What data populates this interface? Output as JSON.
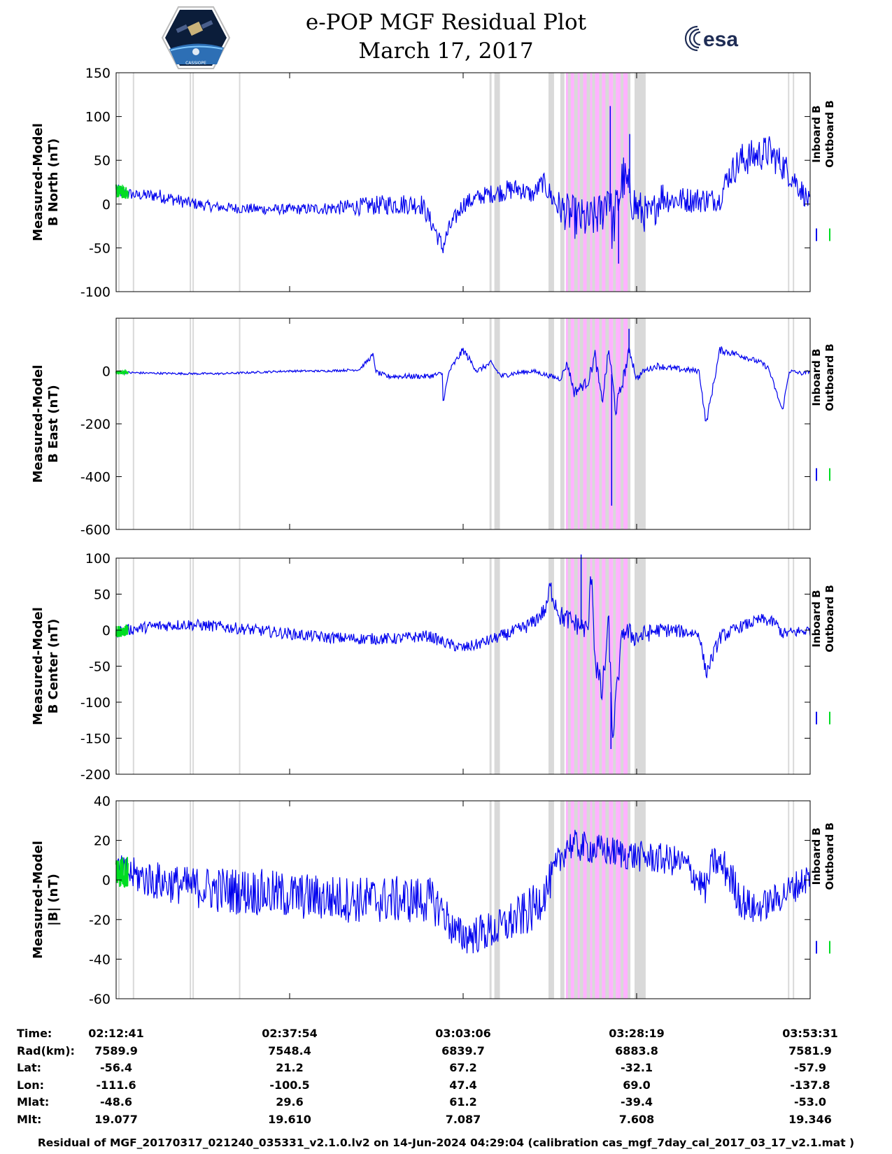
{
  "header": {
    "title": "e-POP MGF Residual Plot",
    "date": "March 17, 2017",
    "left_logo": "CASSIOPE",
    "right_logo": "esa"
  },
  "colors": {
    "inboard": "#0000ee",
    "outboard": "#00dd22",
    "gap_shade": "#d9d9d9",
    "event_shade": "#ffb3ff"
  },
  "legend": {
    "inboard": "Inboard B",
    "outboard": "Outboard B"
  },
  "chart_data": [
    {
      "type": "line",
      "ylabel": [
        "Measured-Model",
        "B North (nT)"
      ],
      "ylim": [
        -100,
        150
      ],
      "yticks": [
        -100,
        -50,
        0,
        50,
        100,
        150
      ],
      "series": [
        {
          "name": "Inboard B",
          "x": [
            0,
            0.03,
            0.06,
            0.1,
            0.14,
            0.18,
            0.22,
            0.26,
            0.3,
            0.35,
            0.4,
            0.44,
            0.46,
            0.47,
            0.48,
            0.5,
            0.53,
            0.56,
            0.58,
            0.6,
            0.615,
            0.63,
            0.64,
            0.66,
            0.68,
            0.7,
            0.71,
            0.715,
            0.73,
            0.75,
            0.77,
            0.785,
            0.8,
            0.85,
            0.87,
            0.88,
            0.9,
            0.92,
            0.94,
            0.96,
            0.98,
            1.0
          ],
          "y": [
            15,
            10,
            10,
            2,
            -3,
            -5,
            -6,
            -6,
            -5,
            -3,
            0,
            0,
            -30,
            -50,
            -28,
            0,
            10,
            15,
            18,
            10,
            25,
            5,
            -5,
            -15,
            -20,
            -10,
            20,
            -30,
            30,
            -5,
            -15,
            10,
            5,
            5,
            5,
            30,
            50,
            55,
            60,
            45,
            25,
            0
          ],
          "amp": [
            8,
            6,
            8,
            7,
            6,
            6,
            6,
            6,
            7,
            10,
            12,
            12,
            10,
            12,
            10,
            10,
            10,
            12,
            12,
            10,
            12,
            15,
            20,
            25,
            25,
            25,
            30,
            30,
            30,
            25,
            20,
            20,
            15,
            15,
            12,
            15,
            20,
            20,
            20,
            18,
            15,
            12
          ],
          "spikes": [
            [
              0.712,
              112
            ],
            [
              0.724,
              -68
            ],
            [
              0.74,
              80
            ]
          ]
        }
      ],
      "outboard_x_end": 0.017
    },
    {
      "type": "line",
      "ylabel": [
        "Measured-Model",
        "B East (nT)"
      ],
      "ylim": [
        -600,
        200
      ],
      "yticks": [
        -600,
        -400,
        -200,
        0
      ],
      "series": [
        {
          "name": "Inboard B",
          "x": [
            0,
            0.05,
            0.1,
            0.15,
            0.2,
            0.25,
            0.3,
            0.35,
            0.37,
            0.375,
            0.39,
            0.45,
            0.47,
            0.47,
            0.48,
            0.5,
            0.52,
            0.54,
            0.555,
            0.57,
            0.6,
            0.64,
            0.65,
            0.66,
            0.68,
            0.69,
            0.7,
            0.71,
            0.72,
            0.74,
            0.75,
            0.76,
            0.78,
            0.8,
            0.84,
            0.85,
            0.87,
            0.9,
            0.93,
            0.94,
            0.96,
            0.97,
            0.99,
            1.0
          ],
          "y": [
            -5,
            -8,
            -10,
            -10,
            -5,
            0,
            0,
            5,
            60,
            -5,
            -20,
            -20,
            -10,
            -130,
            0,
            80,
            0,
            30,
            -20,
            -10,
            0,
            -30,
            30,
            -80,
            -40,
            60,
            -120,
            80,
            -150,
            80,
            -30,
            0,
            20,
            10,
            0,
            -200,
            80,
            60,
            30,
            10,
            -150,
            0,
            -10,
            0
          ],
          "amp": [
            5,
            4,
            4,
            4,
            4,
            4,
            4,
            5,
            10,
            10,
            10,
            10,
            10,
            10,
            10,
            15,
            10,
            10,
            10,
            10,
            8,
            10,
            15,
            20,
            20,
            25,
            25,
            25,
            30,
            25,
            15,
            10,
            12,
            12,
            10,
            15,
            15,
            12,
            10,
            10,
            10,
            8,
            8,
            6
          ],
          "spikes": [
            [
              0.714,
              -510
            ],
            [
              0.739,
              160
            ]
          ]
        }
      ],
      "outboard_x_end": 0.017
    },
    {
      "type": "line",
      "ylabel": [
        "Measured-Model",
        "B Center (nT)"
      ],
      "ylim": [
        -200,
        100
      ],
      "yticks": [
        -200,
        -150,
        -100,
        -50,
        0,
        50,
        100
      ],
      "series": [
        {
          "name": "Inboard B",
          "x": [
            0,
            0.05,
            0.1,
            0.15,
            0.2,
            0.25,
            0.3,
            0.35,
            0.4,
            0.45,
            0.48,
            0.5,
            0.52,
            0.55,
            0.58,
            0.6,
            0.62,
            0.625,
            0.64,
            0.66,
            0.68,
            0.685,
            0.69,
            0.7,
            0.71,
            0.715,
            0.73,
            0.75,
            0.78,
            0.8,
            0.84,
            0.85,
            0.87,
            0.9,
            0.93,
            0.95,
            0.96,
            1.0
          ],
          "y": [
            -2,
            5,
            8,
            5,
            0,
            -5,
            -10,
            -12,
            -12,
            -8,
            -20,
            -25,
            -20,
            -10,
            0,
            10,
            30,
            60,
            20,
            10,
            0,
            90,
            -40,
            -90,
            10,
            -150,
            0,
            -10,
            0,
            0,
            -5,
            -60,
            -10,
            5,
            15,
            10,
            -5,
            0
          ],
          "amp": [
            8,
            8,
            8,
            8,
            8,
            8,
            8,
            8,
            8,
            8,
            8,
            8,
            8,
            8,
            10,
            10,
            12,
            15,
            15,
            15,
            15,
            20,
            20,
            20,
            20,
            20,
            15,
            15,
            10,
            10,
            8,
            10,
            10,
            8,
            8,
            8,
            8,
            8
          ],
          "spikes": [
            [
              0.67,
              105
            ],
            [
              0.713,
              -165
            ]
          ]
        }
      ],
      "outboard_x_end": 0.017
    },
    {
      "type": "line",
      "ylabel": [
        "Measured-Model",
        "|B| (nT)"
      ],
      "ylim": [
        -60,
        40
      ],
      "yticks": [
        -60,
        -40,
        -20,
        0,
        20,
        40
      ],
      "series": [
        {
          "name": "Inboard B",
          "x": [
            0,
            0.05,
            0.1,
            0.15,
            0.2,
            0.25,
            0.3,
            0.35,
            0.4,
            0.45,
            0.47,
            0.49,
            0.51,
            0.55,
            0.6,
            0.62,
            0.65,
            0.7,
            0.75,
            0.8,
            0.82,
            0.85,
            0.86,
            0.88,
            0.9,
            0.92,
            0.95,
            1.0
          ],
          "y": [
            5,
            0,
            -3,
            -5,
            -6,
            -8,
            -9,
            -10,
            -10,
            -10,
            -15,
            -28,
            -28,
            -25,
            -15,
            -5,
            18,
            15,
            12,
            10,
            8,
            -5,
            10,
            5,
            -10,
            -15,
            -10,
            2
          ],
          "amp": [
            8,
            10,
            10,
            12,
            12,
            12,
            12,
            12,
            12,
            12,
            10,
            10,
            10,
            10,
            12,
            10,
            8,
            8,
            8,
            8,
            8,
            8,
            8,
            10,
            10,
            8,
            8,
            8
          ],
          "spikes": []
        }
      ],
      "outboard_x_end": 0.017
    }
  ],
  "shading": {
    "gaps_x": [
      [
        0.003,
        0.005
      ],
      [
        0.024,
        0.026
      ],
      [
        0.106,
        0.108
      ],
      [
        0.11,
        0.112
      ],
      [
        0.177,
        0.179
      ],
      [
        0.538,
        0.541
      ],
      [
        0.545,
        0.553
      ],
      [
        0.623,
        0.631
      ],
      [
        0.64,
        0.646
      ],
      [
        0.651,
        0.655
      ],
      [
        0.66,
        0.665
      ],
      [
        0.668,
        0.673
      ],
      [
        0.678,
        0.683
      ],
      [
        0.686,
        0.69
      ],
      [
        0.696,
        0.7
      ],
      [
        0.705,
        0.71
      ],
      [
        0.716,
        0.72
      ],
      [
        0.727,
        0.731
      ],
      [
        0.737,
        0.741
      ],
      [
        0.747,
        0.763
      ],
      [
        0.968,
        0.97
      ],
      [
        0.975,
        0.977
      ]
    ],
    "event_x": [
      0.648,
      0.738
    ]
  },
  "x_axis": {
    "tick_labels": [
      "02:12:41",
      "02:37:54",
      "03:03:06",
      "03:28:19",
      "03:53:31"
    ],
    "tick_positions": [
      0,
      0.25,
      0.5,
      0.75,
      1.0
    ]
  },
  "ephemeris": {
    "labels": [
      "Time:",
      "Rad(km):",
      "Lat:",
      "Lon:",
      "Mlat:",
      "Mlt:"
    ],
    "columns": [
      [
        "02:12:41",
        "7589.9",
        "-56.4",
        "-111.6",
        "-48.6",
        "19.077"
      ],
      [
        "02:37:54",
        "7548.4",
        "21.2",
        "-100.5",
        "29.6",
        "19.610"
      ],
      [
        "03:03:06",
        "6839.7",
        "67.2",
        "47.4",
        "61.2",
        "7.087"
      ],
      [
        "03:28:19",
        "6883.8",
        "-32.1",
        "69.0",
        "-39.4",
        "7.608"
      ],
      [
        "03:53:31",
        "7581.9",
        "-57.9",
        "-137.8",
        "-53.0",
        "19.346"
      ]
    ]
  },
  "footer": "Residual of MGF_20170317_021240_035331_v2.1.0.lv2 on 14-Jun-2024 04:29:04 (calibration cas_mgf_7day_cal_2017_03_17_v2.1.mat )"
}
